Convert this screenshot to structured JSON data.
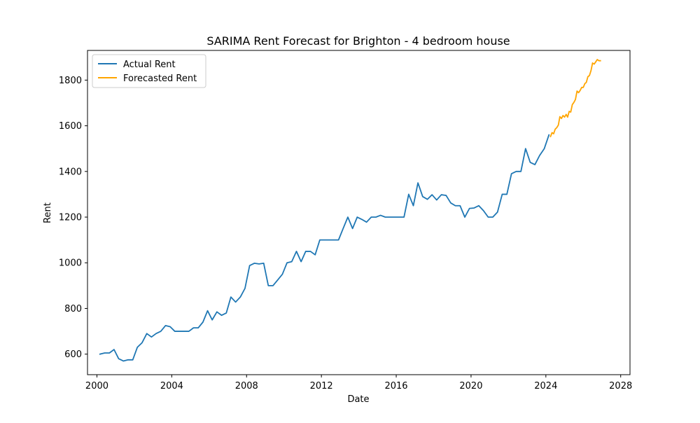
{
  "chart_data": {
    "type": "line",
    "title": "SARIMA Rent Forecast for Brighton - 4 bedroom house",
    "xlabel": "Date",
    "ylabel": "Rent",
    "xlim": [
      "1999-07-01",
      "2028-07-01"
    ],
    "ylim": [
      510,
      1930
    ],
    "x_ticks": [
      "2000",
      "2004",
      "2008",
      "2012",
      "2016",
      "2020",
      "2024",
      "2028"
    ],
    "y_ticks": [
      600,
      800,
      1000,
      1200,
      1400,
      1600,
      1800
    ],
    "grid": false,
    "legend_position": "top-left",
    "series": [
      {
        "name": "Actual Rent",
        "color": "#1f77b4",
        "points": [
          [
            "2000-03-01",
            600
          ],
          [
            "2000-06-01",
            605
          ],
          [
            "2000-09-01",
            605
          ],
          [
            "2000-12-01",
            620
          ],
          [
            "2001-03-01",
            580
          ],
          [
            "2001-06-01",
            570
          ],
          [
            "2001-09-01",
            575
          ],
          [
            "2001-12-01",
            575
          ],
          [
            "2002-03-01",
            630
          ],
          [
            "2002-06-01",
            650
          ],
          [
            "2002-09-01",
            690
          ],
          [
            "2002-12-01",
            675
          ],
          [
            "2003-03-01",
            690
          ],
          [
            "2003-06-01",
            700
          ],
          [
            "2003-09-01",
            725
          ],
          [
            "2003-12-01",
            720
          ],
          [
            "2004-03-01",
            700
          ],
          [
            "2004-06-01",
            700
          ],
          [
            "2004-09-01",
            700
          ],
          [
            "2004-12-01",
            700
          ],
          [
            "2005-03-01",
            715
          ],
          [
            "2005-06-01",
            715
          ],
          [
            "2005-09-01",
            740
          ],
          [
            "2005-12-01",
            790
          ],
          [
            "2006-03-01",
            750
          ],
          [
            "2006-06-01",
            785
          ],
          [
            "2006-09-01",
            770
          ],
          [
            "2006-12-01",
            780
          ],
          [
            "2007-03-01",
            850
          ],
          [
            "2007-06-01",
            828
          ],
          [
            "2007-09-01",
            850
          ],
          [
            "2007-12-01",
            888
          ],
          [
            "2008-03-01",
            988
          ],
          [
            "2008-06-01",
            998
          ],
          [
            "2008-09-01",
            995
          ],
          [
            "2008-12-01",
            998
          ],
          [
            "2009-03-01",
            900
          ],
          [
            "2009-06-01",
            900
          ],
          [
            "2009-09-01",
            925
          ],
          [
            "2009-12-01",
            950
          ],
          [
            "2010-03-01",
            1000
          ],
          [
            "2010-06-01",
            1005
          ],
          [
            "2010-09-01",
            1050
          ],
          [
            "2010-12-01",
            1005
          ],
          [
            "2011-03-01",
            1050
          ],
          [
            "2011-06-01",
            1050
          ],
          [
            "2011-09-01",
            1035
          ],
          [
            "2011-12-01",
            1100
          ],
          [
            "2012-03-01",
            1100
          ],
          [
            "2012-06-01",
            1100
          ],
          [
            "2012-09-01",
            1100
          ],
          [
            "2012-12-01",
            1100
          ],
          [
            "2013-03-01",
            1150
          ],
          [
            "2013-06-01",
            1200
          ],
          [
            "2013-09-01",
            1150
          ],
          [
            "2013-12-01",
            1200
          ],
          [
            "2014-03-01",
            1190
          ],
          [
            "2014-06-01",
            1178
          ],
          [
            "2014-09-01",
            1200
          ],
          [
            "2014-12-01",
            1200
          ],
          [
            "2015-03-01",
            1208
          ],
          [
            "2015-06-01",
            1200
          ],
          [
            "2015-09-01",
            1200
          ],
          [
            "2015-12-01",
            1200
          ],
          [
            "2016-03-01",
            1200
          ],
          [
            "2016-06-01",
            1200
          ],
          [
            "2016-09-01",
            1300
          ],
          [
            "2016-12-01",
            1250
          ],
          [
            "2017-03-01",
            1350
          ],
          [
            "2017-06-01",
            1290
          ],
          [
            "2017-09-01",
            1278
          ],
          [
            "2017-12-01",
            1298
          ],
          [
            "2018-03-01",
            1275
          ],
          [
            "2018-06-01",
            1298
          ],
          [
            "2018-09-01",
            1295
          ],
          [
            "2018-12-01",
            1262
          ],
          [
            "2019-03-01",
            1250
          ],
          [
            "2019-06-01",
            1250
          ],
          [
            "2019-09-01",
            1200
          ],
          [
            "2019-12-01",
            1238
          ],
          [
            "2020-03-01",
            1240
          ],
          [
            "2020-06-01",
            1250
          ],
          [
            "2020-09-01",
            1228
          ],
          [
            "2020-12-01",
            1200
          ],
          [
            "2021-03-01",
            1200
          ],
          [
            "2021-06-01",
            1222
          ],
          [
            "2021-09-01",
            1300
          ],
          [
            "2021-12-01",
            1300
          ],
          [
            "2022-03-01",
            1390
          ],
          [
            "2022-06-01",
            1400
          ],
          [
            "2022-09-01",
            1400
          ],
          [
            "2022-12-01",
            1500
          ],
          [
            "2023-03-01",
            1440
          ],
          [
            "2023-06-01",
            1430
          ],
          [
            "2023-09-01",
            1470
          ],
          [
            "2023-12-01",
            1500
          ],
          [
            "2024-03-01",
            1560
          ]
        ]
      },
      {
        "name": "Forecasted Rent",
        "color": "#ffa500",
        "points": [
          [
            "2024-04-01",
            1553
          ],
          [
            "2024-05-01",
            1570
          ],
          [
            "2024-06-01",
            1565
          ],
          [
            "2024-07-01",
            1585
          ],
          [
            "2024-08-01",
            1592
          ],
          [
            "2024-09-01",
            1603
          ],
          [
            "2024-10-01",
            1640
          ],
          [
            "2024-11-01",
            1632
          ],
          [
            "2024-12-01",
            1645
          ],
          [
            "2025-01-01",
            1638
          ],
          [
            "2025-02-01",
            1650
          ],
          [
            "2025-03-01",
            1638
          ],
          [
            "2025-04-01",
            1663
          ],
          [
            "2025-05-01",
            1660
          ],
          [
            "2025-06-01",
            1693
          ],
          [
            "2025-07-01",
            1702
          ],
          [
            "2025-08-01",
            1715
          ],
          [
            "2025-09-01",
            1752
          ],
          [
            "2025-10-01",
            1745
          ],
          [
            "2025-11-01",
            1755
          ],
          [
            "2025-12-01",
            1768
          ],
          [
            "2026-01-01",
            1768
          ],
          [
            "2026-02-01",
            1785
          ],
          [
            "2026-03-01",
            1790
          ],
          [
            "2026-04-01",
            1815
          ],
          [
            "2026-05-01",
            1820
          ],
          [
            "2026-06-01",
            1842
          ],
          [
            "2026-07-01",
            1875
          ],
          [
            "2026-08-01",
            1870
          ],
          [
            "2026-09-01",
            1880
          ],
          [
            "2026-10-01",
            1890
          ],
          [
            "2026-11-01",
            1885
          ],
          [
            "2026-12-01",
            1885
          ]
        ]
      }
    ]
  }
}
